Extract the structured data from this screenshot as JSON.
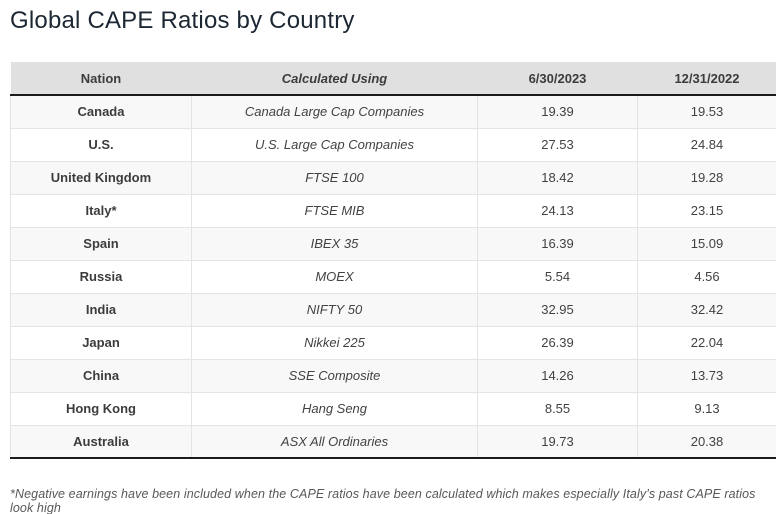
{
  "page": {
    "title": "Global CAPE Ratios by Country",
    "footnote": "*Negative earnings have been included when the CAPE ratios have been calculated which makes especially Italy’s past CAPE ratios look high"
  },
  "chart_data": {
    "type": "table",
    "title": "Global CAPE Ratios by Country",
    "columns": [
      "Nation",
      "Calculated Using",
      "6/30/2023",
      "12/31/2022"
    ],
    "rows": [
      [
        "Canada",
        "Canada Large Cap Companies",
        19.39,
        19.53
      ],
      [
        "U.S.",
        "U.S. Large Cap Companies",
        27.53,
        24.84
      ],
      [
        "United Kingdom",
        "FTSE 100",
        18.42,
        19.28
      ],
      [
        "Italy*",
        "FTSE MIB",
        24.13,
        23.15
      ],
      [
        "Spain",
        "IBEX 35",
        16.39,
        15.09
      ],
      [
        "Russia",
        "MOEX",
        5.54,
        4.56
      ],
      [
        "India",
        "NIFTY 50",
        32.95,
        32.42
      ],
      [
        "Japan",
        "Nikkei 225",
        26.39,
        22.04
      ],
      [
        "China",
        "SSE Composite",
        14.26,
        13.73
      ],
      [
        "Hong Kong",
        "Hang Seng",
        8.55,
        9.13
      ],
      [
        "Australia",
        "ASX All Ordinaries",
        19.73,
        20.38
      ]
    ],
    "layout": {
      "header_bg": "#e0e0e0",
      "alt_row_bg": "#f8f8f8",
      "dark_border": "#1b1b1b",
      "light_border": "#e4e4e4",
      "title_color": "#1c2733"
    }
  }
}
